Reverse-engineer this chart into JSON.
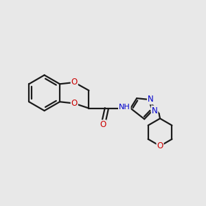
{
  "bg_color": "#e8e8e8",
  "bond_color": "#1a1a1a",
  "bond_width": 1.6,
  "atom_colors": {
    "O": "#cc0000",
    "N": "#0000cc",
    "C": "#1a1a1a"
  },
  "font_size": 8.5,
  "fig_size": [
    3.0,
    3.0
  ],
  "dpi": 100
}
